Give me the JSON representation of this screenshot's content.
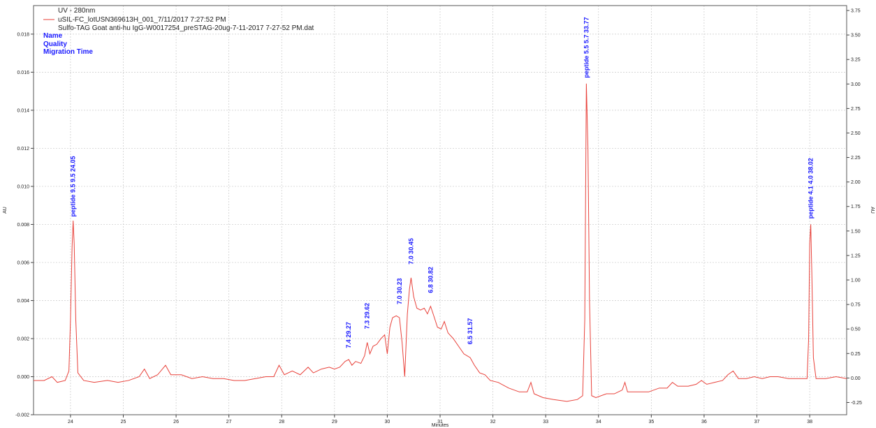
{
  "chart_data": {
    "type": "line",
    "xlabel": "Minutes",
    "ylabel_left": "AU",
    "ylabel_right": "AU",
    "xlim": [
      23.3,
      38.7
    ],
    "ylim_left": [
      -0.002,
      0.0195
    ],
    "ylim_right": [
      -0.375,
      3.8
    ],
    "grid": true,
    "x_ticks": [
      "24",
      "25",
      "26",
      "27",
      "28",
      "29",
      "30",
      "31",
      "32",
      "33",
      "34",
      "35",
      "36",
      "37",
      "38"
    ],
    "y_ticks_left": [
      "-0.002",
      "0.000",
      "0.002",
      "0.004",
      "0.006",
      "0.008",
      "0.010",
      "0.012",
      "0.014",
      "0.016",
      "0.018"
    ],
    "y_ticks_right": [
      "-0.25",
      "0.00",
      "0.25",
      "0.50",
      "0.75",
      "1.00",
      "1.25",
      "1.50",
      "1.75",
      "2.00",
      "2.25",
      "2.50",
      "2.75",
      "3.00",
      "3.25",
      "3.50",
      "3.75"
    ],
    "legend": {
      "header": "UV - 280nm",
      "entries": [
        "uSIL-FC_lotUSN369613H_001_7/11/2017 7:27:52 PM",
        "Sulfo-TAG Goat anti-hu IgG-W0017254_preSTAG-20ug-7-11-2017 7-27-52 PM.dat"
      ],
      "placement": "top-left"
    },
    "meta_labels": [
      "Name",
      "Quality",
      "Migration Time"
    ],
    "series": [
      {
        "color": "#e8413a",
        "points": [
          [
            23.3,
            -0.0002
          ],
          [
            23.5,
            -0.0002
          ],
          [
            23.65,
            0.0
          ],
          [
            23.75,
            -0.0003
          ],
          [
            23.9,
            -0.0002
          ],
          [
            23.97,
            0.0003
          ],
          [
            24.0,
            0.003
          ],
          [
            24.03,
            0.0068
          ],
          [
            24.05,
            0.0082
          ],
          [
            24.07,
            0.007
          ],
          [
            24.1,
            0.003
          ],
          [
            24.14,
            0.0002
          ],
          [
            24.25,
            -0.0002
          ],
          [
            24.45,
            -0.0003
          ],
          [
            24.7,
            -0.0002
          ],
          [
            24.9,
            -0.0003
          ],
          [
            25.1,
            -0.0002
          ],
          [
            25.3,
            0.0
          ],
          [
            25.4,
            0.0004
          ],
          [
            25.5,
            -0.0001
          ],
          [
            25.65,
            0.0001
          ],
          [
            25.8,
            0.0006
          ],
          [
            25.9,
            0.0001
          ],
          [
            26.1,
            0.0001
          ],
          [
            26.3,
            -0.0001
          ],
          [
            26.5,
            0.0
          ],
          [
            26.7,
            -0.0001
          ],
          [
            26.9,
            -0.0001
          ],
          [
            27.1,
            -0.0002
          ],
          [
            27.3,
            -0.0002
          ],
          [
            27.5,
            -0.0001
          ],
          [
            27.7,
            0.0
          ],
          [
            27.85,
            0.0
          ],
          [
            27.95,
            0.0006
          ],
          [
            28.05,
            0.0001
          ],
          [
            28.2,
            0.0003
          ],
          [
            28.35,
            0.0001
          ],
          [
            28.5,
            0.0005
          ],
          [
            28.6,
            0.0002
          ],
          [
            28.75,
            0.0004
          ],
          [
            28.9,
            0.0005
          ],
          [
            29.0,
            0.0004
          ],
          [
            29.1,
            0.0005
          ],
          [
            29.2,
            0.0008
          ],
          [
            29.27,
            0.0009
          ],
          [
            29.33,
            0.0006
          ],
          [
            29.4,
            0.0008
          ],
          [
            29.5,
            0.0007
          ],
          [
            29.57,
            0.0011
          ],
          [
            29.62,
            0.0018
          ],
          [
            29.67,
            0.0012
          ],
          [
            29.73,
            0.0016
          ],
          [
            29.8,
            0.0017
          ],
          [
            29.88,
            0.002
          ],
          [
            29.95,
            0.0022
          ],
          [
            30.0,
            0.0012
          ],
          [
            30.05,
            0.0026
          ],
          [
            30.1,
            0.0031
          ],
          [
            30.17,
            0.0032
          ],
          [
            30.23,
            0.0031
          ],
          [
            30.28,
            0.0018
          ],
          [
            30.33,
            0.0
          ],
          [
            30.38,
            0.0033
          ],
          [
            30.42,
            0.0046
          ],
          [
            30.45,
            0.0052
          ],
          [
            30.5,
            0.0042
          ],
          [
            30.56,
            0.0036
          ],
          [
            30.63,
            0.0035
          ],
          [
            30.7,
            0.0036
          ],
          [
            30.76,
            0.0033
          ],
          [
            30.82,
            0.0037
          ],
          [
            30.88,
            0.0032
          ],
          [
            30.95,
            0.0026
          ],
          [
            31.02,
            0.0025
          ],
          [
            31.08,
            0.0029
          ],
          [
            31.15,
            0.0023
          ],
          [
            31.25,
            0.002
          ],
          [
            31.35,
            0.0016
          ],
          [
            31.45,
            0.0012
          ],
          [
            31.57,
            0.001
          ],
          [
            31.65,
            0.0006
          ],
          [
            31.75,
            0.0002
          ],
          [
            31.85,
            0.0001
          ],
          [
            31.95,
            -0.0002
          ],
          [
            32.1,
            -0.0003
          ],
          [
            32.3,
            -0.0006
          ],
          [
            32.5,
            -0.0008
          ],
          [
            32.65,
            -0.0008
          ],
          [
            32.72,
            -0.0003
          ],
          [
            32.78,
            -0.0009
          ],
          [
            32.95,
            -0.0011
          ],
          [
            33.15,
            -0.0012
          ],
          [
            33.4,
            -0.0013
          ],
          [
            33.6,
            -0.0012
          ],
          [
            33.7,
            -0.001
          ],
          [
            33.74,
            0.003
          ],
          [
            33.77,
            0.0154
          ],
          [
            33.8,
            0.012
          ],
          [
            33.83,
            0.004
          ],
          [
            33.87,
            -0.001
          ],
          [
            33.95,
            -0.0011
          ],
          [
            34.15,
            -0.0009
          ],
          [
            34.3,
            -0.0009
          ],
          [
            34.45,
            -0.0007
          ],
          [
            34.5,
            -0.0003
          ],
          [
            34.55,
            -0.0008
          ],
          [
            34.75,
            -0.0008
          ],
          [
            34.95,
            -0.0008
          ],
          [
            35.15,
            -0.0006
          ],
          [
            35.3,
            -0.0006
          ],
          [
            35.4,
            -0.0003
          ],
          [
            35.5,
            -0.0005
          ],
          [
            35.7,
            -0.0005
          ],
          [
            35.85,
            -0.0004
          ],
          [
            35.95,
            -0.0002
          ],
          [
            36.05,
            -0.0004
          ],
          [
            36.2,
            -0.0003
          ],
          [
            36.35,
            -0.0002
          ],
          [
            36.45,
            0.0001
          ],
          [
            36.55,
            0.0003
          ],
          [
            36.65,
            -0.0001
          ],
          [
            36.8,
            -0.0001
          ],
          [
            36.95,
            0.0
          ],
          [
            37.1,
            -0.0001
          ],
          [
            37.25,
            0.0
          ],
          [
            37.4,
            0.0
          ],
          [
            37.6,
            -0.0001
          ],
          [
            37.8,
            -0.0001
          ],
          [
            37.95,
            -0.0001
          ],
          [
            37.98,
            0.002
          ],
          [
            38.0,
            0.007
          ],
          [
            38.02,
            0.008
          ],
          [
            38.04,
            0.0055
          ],
          [
            38.07,
            0.001
          ],
          [
            38.12,
            -0.0001
          ],
          [
            38.3,
            -0.0001
          ],
          [
            38.5,
            0.0
          ],
          [
            38.7,
            -0.0001
          ]
        ]
      }
    ],
    "annotations": [
      {
        "text": "peptide 9.5  9.5  24.05",
        "x": 24.05,
        "y": 0.0084
      },
      {
        "text": "7.4  29.27",
        "x": 29.27,
        "y": 0.0015
      },
      {
        "text": "7.3  29.62",
        "x": 29.62,
        "y": 0.0025
      },
      {
        "text": "7.0  30.23",
        "x": 30.23,
        "y": 0.0038
      },
      {
        "text": "7.0  30.45",
        "x": 30.45,
        "y": 0.0059
      },
      {
        "text": "6.8  30.82",
        "x": 30.82,
        "y": 0.0044
      },
      {
        "text": "6.5  31.57",
        "x": 31.57,
        "y": 0.0017
      },
      {
        "text": "peptide 5.5  5.7  33.77",
        "x": 33.77,
        "y": 0.0157
      },
      {
        "text": "peptide 4.1  4.0  38.02",
        "x": 38.02,
        "y": 0.0083
      }
    ]
  }
}
